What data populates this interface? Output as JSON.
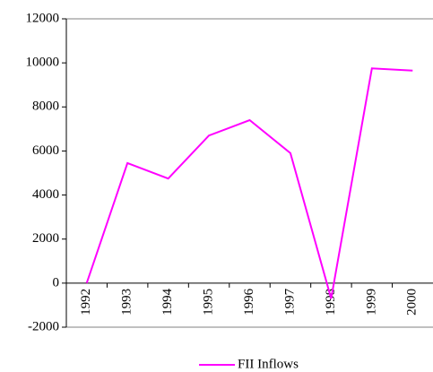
{
  "chart_data": {
    "type": "line",
    "categories": [
      "1992",
      "1993",
      "1994",
      "1995",
      "1996",
      "1997",
      "1998",
      "1999",
      "2000"
    ],
    "series": [
      {
        "name": "FII Inflows",
        "color": "#ff00ff",
        "values": [
          0,
          5450,
          4750,
          6700,
          7400,
          5900,
          -700,
          9750,
          9650
        ]
      }
    ],
    "ylim": [
      -2000,
      12000
    ],
    "yticks": [
      -2000,
      0,
      2000,
      4000,
      6000,
      8000,
      10000,
      12000
    ],
    "grid": false,
    "legend": "bottom"
  }
}
